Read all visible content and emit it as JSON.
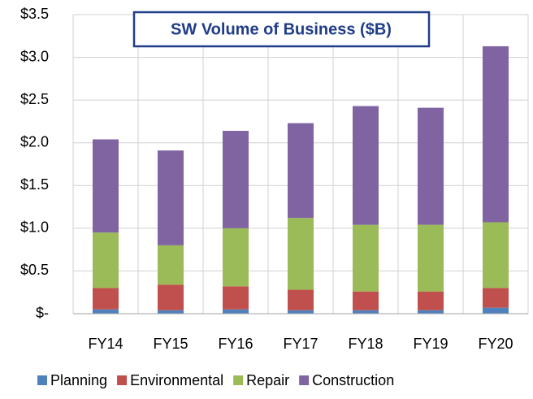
{
  "chart_data": {
    "type": "stacked_bar",
    "title": "SW Volume of Business ($B)",
    "categories": [
      "FY14",
      "FY15",
      "FY16",
      "FY17",
      "FY18",
      "FY19",
      "FY20"
    ],
    "series": [
      {
        "name": "Planning",
        "color": "#4f81bd",
        "values": [
          0.05,
          0.04,
          0.05,
          0.04,
          0.04,
          0.04,
          0.07
        ]
      },
      {
        "name": "Environmental",
        "color": "#c0504d",
        "values": [
          0.25,
          0.3,
          0.27,
          0.24,
          0.22,
          0.22,
          0.23
        ]
      },
      {
        "name": "Repair",
        "color": "#9bbb59",
        "values": [
          0.65,
          0.46,
          0.68,
          0.84,
          0.78,
          0.78,
          0.77
        ]
      },
      {
        "name": "Construction",
        "color": "#8064a2",
        "values": [
          1.09,
          1.11,
          1.14,
          1.11,
          1.39,
          1.37,
          2.06
        ]
      }
    ],
    "ylim": [
      0,
      3.5
    ],
    "yticks": [
      {
        "value": 0,
        "label": "$-"
      },
      {
        "value": 0.5,
        "label": "$0.5"
      },
      {
        "value": 1.0,
        "label": "$1.0"
      },
      {
        "value": 1.5,
        "label": "$1.5"
      },
      {
        "value": 2.0,
        "label": "$2.0"
      },
      {
        "value": 2.5,
        "label": "$2.5"
      },
      {
        "value": 3.0,
        "label": "$3.0"
      },
      {
        "value": 3.5,
        "label": "$3.5"
      }
    ],
    "grid": true,
    "legend": "bottom"
  }
}
